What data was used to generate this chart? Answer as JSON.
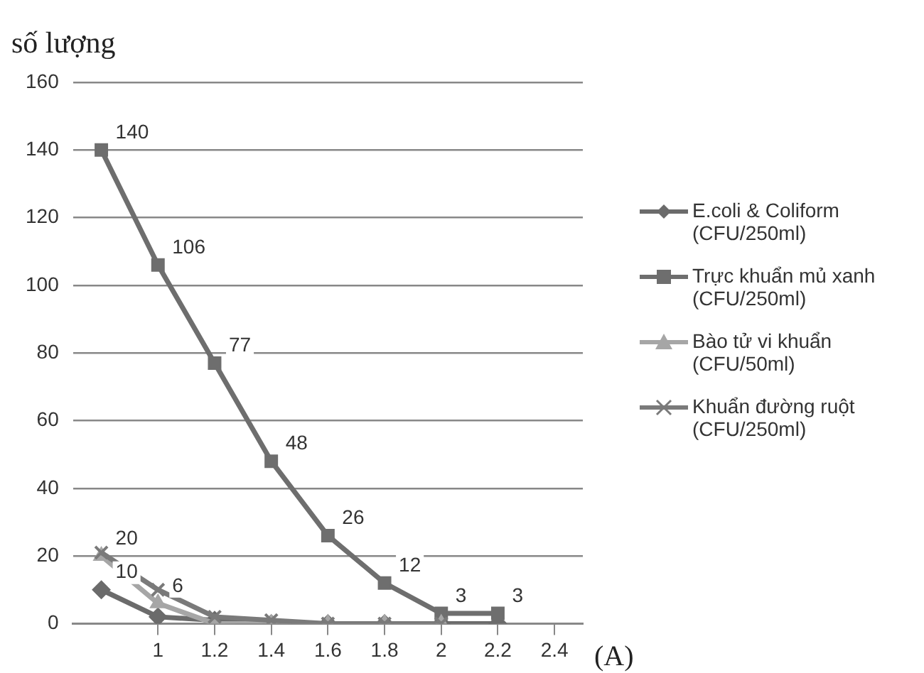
{
  "chart_data": {
    "type": "line",
    "ylabel": "số lượng",
    "annotations": [
      "(A)"
    ],
    "x": [
      0.8,
      1,
      1.2,
      1.4,
      1.6,
      1.8,
      2,
      2.2
    ],
    "xlim": [
      0.7,
      2.5
    ],
    "xticks": [
      1,
      1.2,
      1.4,
      1.6,
      1.8,
      2,
      2.2,
      2.4
    ],
    "ylim": [
      0,
      160
    ],
    "yticks": [
      0,
      20,
      40,
      60,
      80,
      100,
      120,
      140,
      160
    ],
    "grid": "y",
    "legend": "right",
    "series": [
      {
        "name": "E.coli & Coliform (CFU/250ml)",
        "color": "#6b6b6b",
        "marker": "diamond",
        "values": [
          10,
          2,
          1,
          0,
          0,
          0,
          0,
          0
        ],
        "value_labels": [
          "10",
          null,
          null,
          null,
          null,
          null,
          null,
          null
        ]
      },
      {
        "name": "Trực khuẩn mủ xanh (CFU/250ml)",
        "color": "#6e6e6e",
        "marker": "square",
        "values": [
          140,
          106,
          77,
          48,
          26,
          12,
          3,
          3
        ],
        "value_labels": [
          "140",
          "106",
          "77",
          "48",
          "26",
          "12",
          "3",
          "3"
        ]
      },
      {
        "name": "Bào tử vi khuẩn (CFU/50ml)",
        "color": "#a6a6a6",
        "marker": "triangle",
        "values": [
          20,
          6,
          0,
          0,
          0,
          0,
          0,
          null
        ],
        "value_labels": [
          "20",
          "6",
          null,
          null,
          null,
          null,
          null,
          null
        ]
      },
      {
        "name": "Khuẩn đường ruột (CFU/250ml)",
        "color": "#7a7a7a",
        "marker": "cross",
        "values": [
          21,
          10,
          2,
          1,
          0,
          0,
          0,
          null
        ]
      }
    ]
  }
}
